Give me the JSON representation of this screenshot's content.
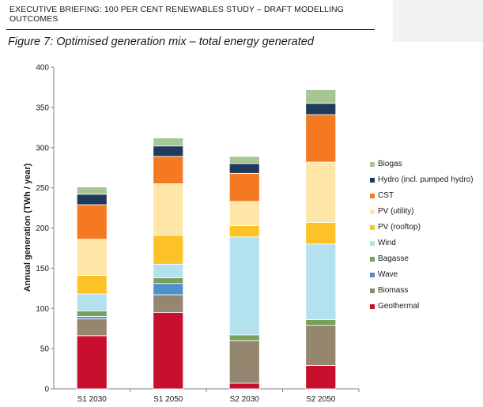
{
  "header": {
    "title": "EXECUTIVE BRIEFING: 100 PER CENT RENEWABLES STUDY – DRAFT MODELLING OUTCOMES"
  },
  "figure": {
    "caption": "Figure 7: Optimised generation mix – total energy generated"
  },
  "chart_data": {
    "type": "bar",
    "stacked": true,
    "categories": [
      "S1 2030",
      "S1 2050",
      "S2 2030",
      "S2 2050"
    ],
    "ylabel": "Annual generation (TWh / year)",
    "xlabel": "",
    "ylim": [
      0,
      400
    ],
    "yticks": [
      0,
      50,
      100,
      150,
      200,
      250,
      300,
      350,
      400
    ],
    "grid": false,
    "legend_position": "right",
    "series": [
      {
        "name": "Geothermal",
        "color": "#c8102e",
        "values": [
          66,
          95,
          7,
          29
        ]
      },
      {
        "name": "Biomass",
        "color": "#958670",
        "values": [
          21,
          22,
          53,
          50
        ]
      },
      {
        "name": "Wave",
        "color": "#4f8fcc",
        "values": [
          3,
          14,
          0,
          0
        ]
      },
      {
        "name": "Bagasse",
        "color": "#77a15a",
        "values": [
          7,
          7,
          7,
          7
        ]
      },
      {
        "name": "Wind",
        "color": "#b4e1ee",
        "values": [
          21,
          17,
          122,
          94
        ]
      },
      {
        "name": "PV (rooftop)",
        "color": "#fdc326",
        "values": [
          23,
          36,
          14,
          27
        ]
      },
      {
        "name": "PV (utility)",
        "color": "#fde6a8",
        "values": [
          45,
          64,
          30,
          75
        ]
      },
      {
        "name": "CST",
        "color": "#f47920",
        "values": [
          43,
          34,
          35,
          59
        ]
      },
      {
        "name": "Hydro (incl. pumped hydro)",
        "color": "#203a5c",
        "values": [
          13,
          13,
          12,
          14
        ]
      },
      {
        "name": "Biogas",
        "color": "#a7c595",
        "values": [
          9,
          10,
          9,
          17
        ]
      }
    ]
  }
}
